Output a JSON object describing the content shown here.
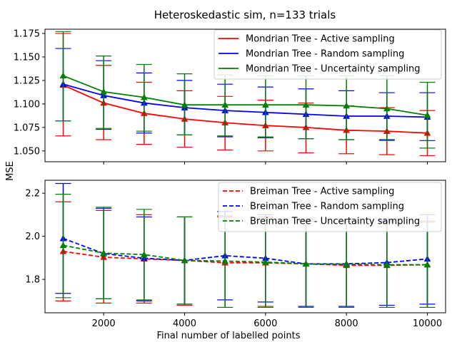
{
  "figure": {
    "title": "Heteroskedastic sim, n=133 trials",
    "ylabel": "MSE",
    "xlabel": "Final number of labelled points"
  },
  "chart_data": [
    {
      "type": "line",
      "title": "Heteroskedastic sim, n=133 trials",
      "x": [
        1000,
        2000,
        3000,
        4000,
        5000,
        6000,
        7000,
        8000,
        9000,
        10000
      ],
      "xlim": [
        550,
        10450
      ],
      "ylim": [
        1.0385,
        1.1795
      ],
      "xticks": [
        2000,
        4000,
        6000,
        8000,
        10000
      ],
      "xtick_labels": [
        "",
        "",
        "",
        "",
        ""
      ],
      "yticks": [
        1.05,
        1.075,
        1.1,
        1.125,
        1.15,
        1.175
      ],
      "ytick_labels": [
        "1.050",
        "1.075",
        "1.100",
        "1.125",
        "1.150",
        "1.175"
      ],
      "legend_position": "top-right",
      "series": [
        {
          "name": "Mondrian Tree - Active sampling",
          "color": "#ff0000",
          "linestyle": "solid",
          "values": [
            1.12,
            1.101,
            1.09,
            1.084,
            1.08,
            1.077,
            1.075,
            1.072,
            1.071,
            1.069
          ],
          "err_low": [
            1.066,
            1.062,
            1.057,
            1.054,
            1.051,
            1.05,
            1.048,
            1.047,
            1.046,
            1.045
          ],
          "err_high": [
            1.175,
            1.141,
            1.123,
            1.114,
            1.108,
            1.104,
            1.101,
            1.098,
            1.096,
            1.093
          ]
        },
        {
          "name": "Mondrian Tree - Random sampling",
          "color": "#0000ff",
          "linestyle": "solid",
          "values": [
            1.121,
            1.109,
            1.101,
            1.096,
            1.093,
            1.091,
            1.089,
            1.087,
            1.087,
            1.086
          ],
          "err_low": [
            1.082,
            1.073,
            1.069,
            1.067,
            1.065,
            1.064,
            1.063,
            1.062,
            1.062,
            1.061
          ],
          "err_high": [
            1.159,
            1.146,
            1.133,
            1.125,
            1.121,
            1.118,
            1.116,
            1.114,
            1.112,
            1.112
          ]
        },
        {
          "name": "Mondrian Tree - Uncertainty sampling",
          "color": "#008000",
          "linestyle": "solid",
          "values": [
            1.13,
            1.113,
            1.107,
            1.099,
            1.099,
            1.099,
            1.099,
            1.098,
            1.095,
            1.088
          ],
          "err_low": [
            1.082,
            1.074,
            1.071,
            1.067,
            1.066,
            1.065,
            1.063,
            1.062,
            1.061,
            1.053
          ],
          "err_high": [
            1.177,
            1.151,
            1.142,
            1.132,
            1.131,
            1.13,
            1.13,
            1.13,
            1.13,
            1.123
          ]
        }
      ]
    },
    {
      "type": "line",
      "x": [
        1000,
        2000,
        3000,
        4000,
        5000,
        6000,
        7000,
        8000,
        9000,
        10000
      ],
      "xlim": [
        550,
        10450
      ],
      "ylim": [
        1.645,
        2.26
      ],
      "xticks": [
        2000,
        4000,
        6000,
        8000,
        10000
      ],
      "xtick_labels": [
        "2000",
        "4000",
        "6000",
        "8000",
        "10000"
      ],
      "yticks": [
        1.8,
        2.0,
        2.2
      ],
      "ytick_labels": [
        "1.8",
        "2.0",
        "2.2"
      ],
      "legend_position": "top-right",
      "series": [
        {
          "name": "Breiman Tree - Active sampling",
          "color": "#ff0000",
          "linestyle": "dashed",
          "values": [
            1.93,
            1.903,
            1.895,
            1.888,
            1.877,
            1.877,
            1.872,
            1.865,
            1.865,
            1.868
          ],
          "err_low": [
            1.7,
            1.69,
            1.69,
            1.68,
            1.67,
            1.67,
            1.67,
            1.67,
            1.67,
            1.67
          ],
          "err_high": [
            2.16,
            2.12,
            2.1,
            2.09,
            2.09,
            2.09,
            2.08,
            2.07,
            2.07,
            2.07
          ]
        },
        {
          "name": "Breiman Tree - Random sampling",
          "color": "#0000ff",
          "linestyle": "dashed",
          "values": [
            1.99,
            1.92,
            1.898,
            1.888,
            1.91,
            1.898,
            1.872,
            1.872,
            1.878,
            1.895
          ],
          "err_low": [
            1.735,
            1.71,
            1.7,
            1.685,
            1.705,
            1.695,
            1.675,
            1.675,
            1.68,
            1.685
          ],
          "err_high": [
            2.245,
            2.13,
            2.09,
            2.09,
            2.115,
            2.1,
            2.07,
            2.07,
            2.075,
            2.1
          ]
        },
        {
          "name": "Breiman Tree - Uncertainty sampling",
          "color": "#008000",
          "linestyle": "dashed",
          "values": [
            1.958,
            1.922,
            1.915,
            1.888,
            1.885,
            1.88,
            1.872,
            1.87,
            1.868,
            1.868
          ],
          "err_low": [
            1.715,
            1.71,
            1.705,
            1.685,
            1.67,
            1.675,
            1.67,
            1.67,
            1.67,
            1.67
          ],
          "err_high": [
            2.195,
            2.135,
            2.125,
            2.09,
            2.095,
            2.085,
            2.075,
            2.07,
            2.065,
            2.065
          ]
        }
      ]
    }
  ]
}
